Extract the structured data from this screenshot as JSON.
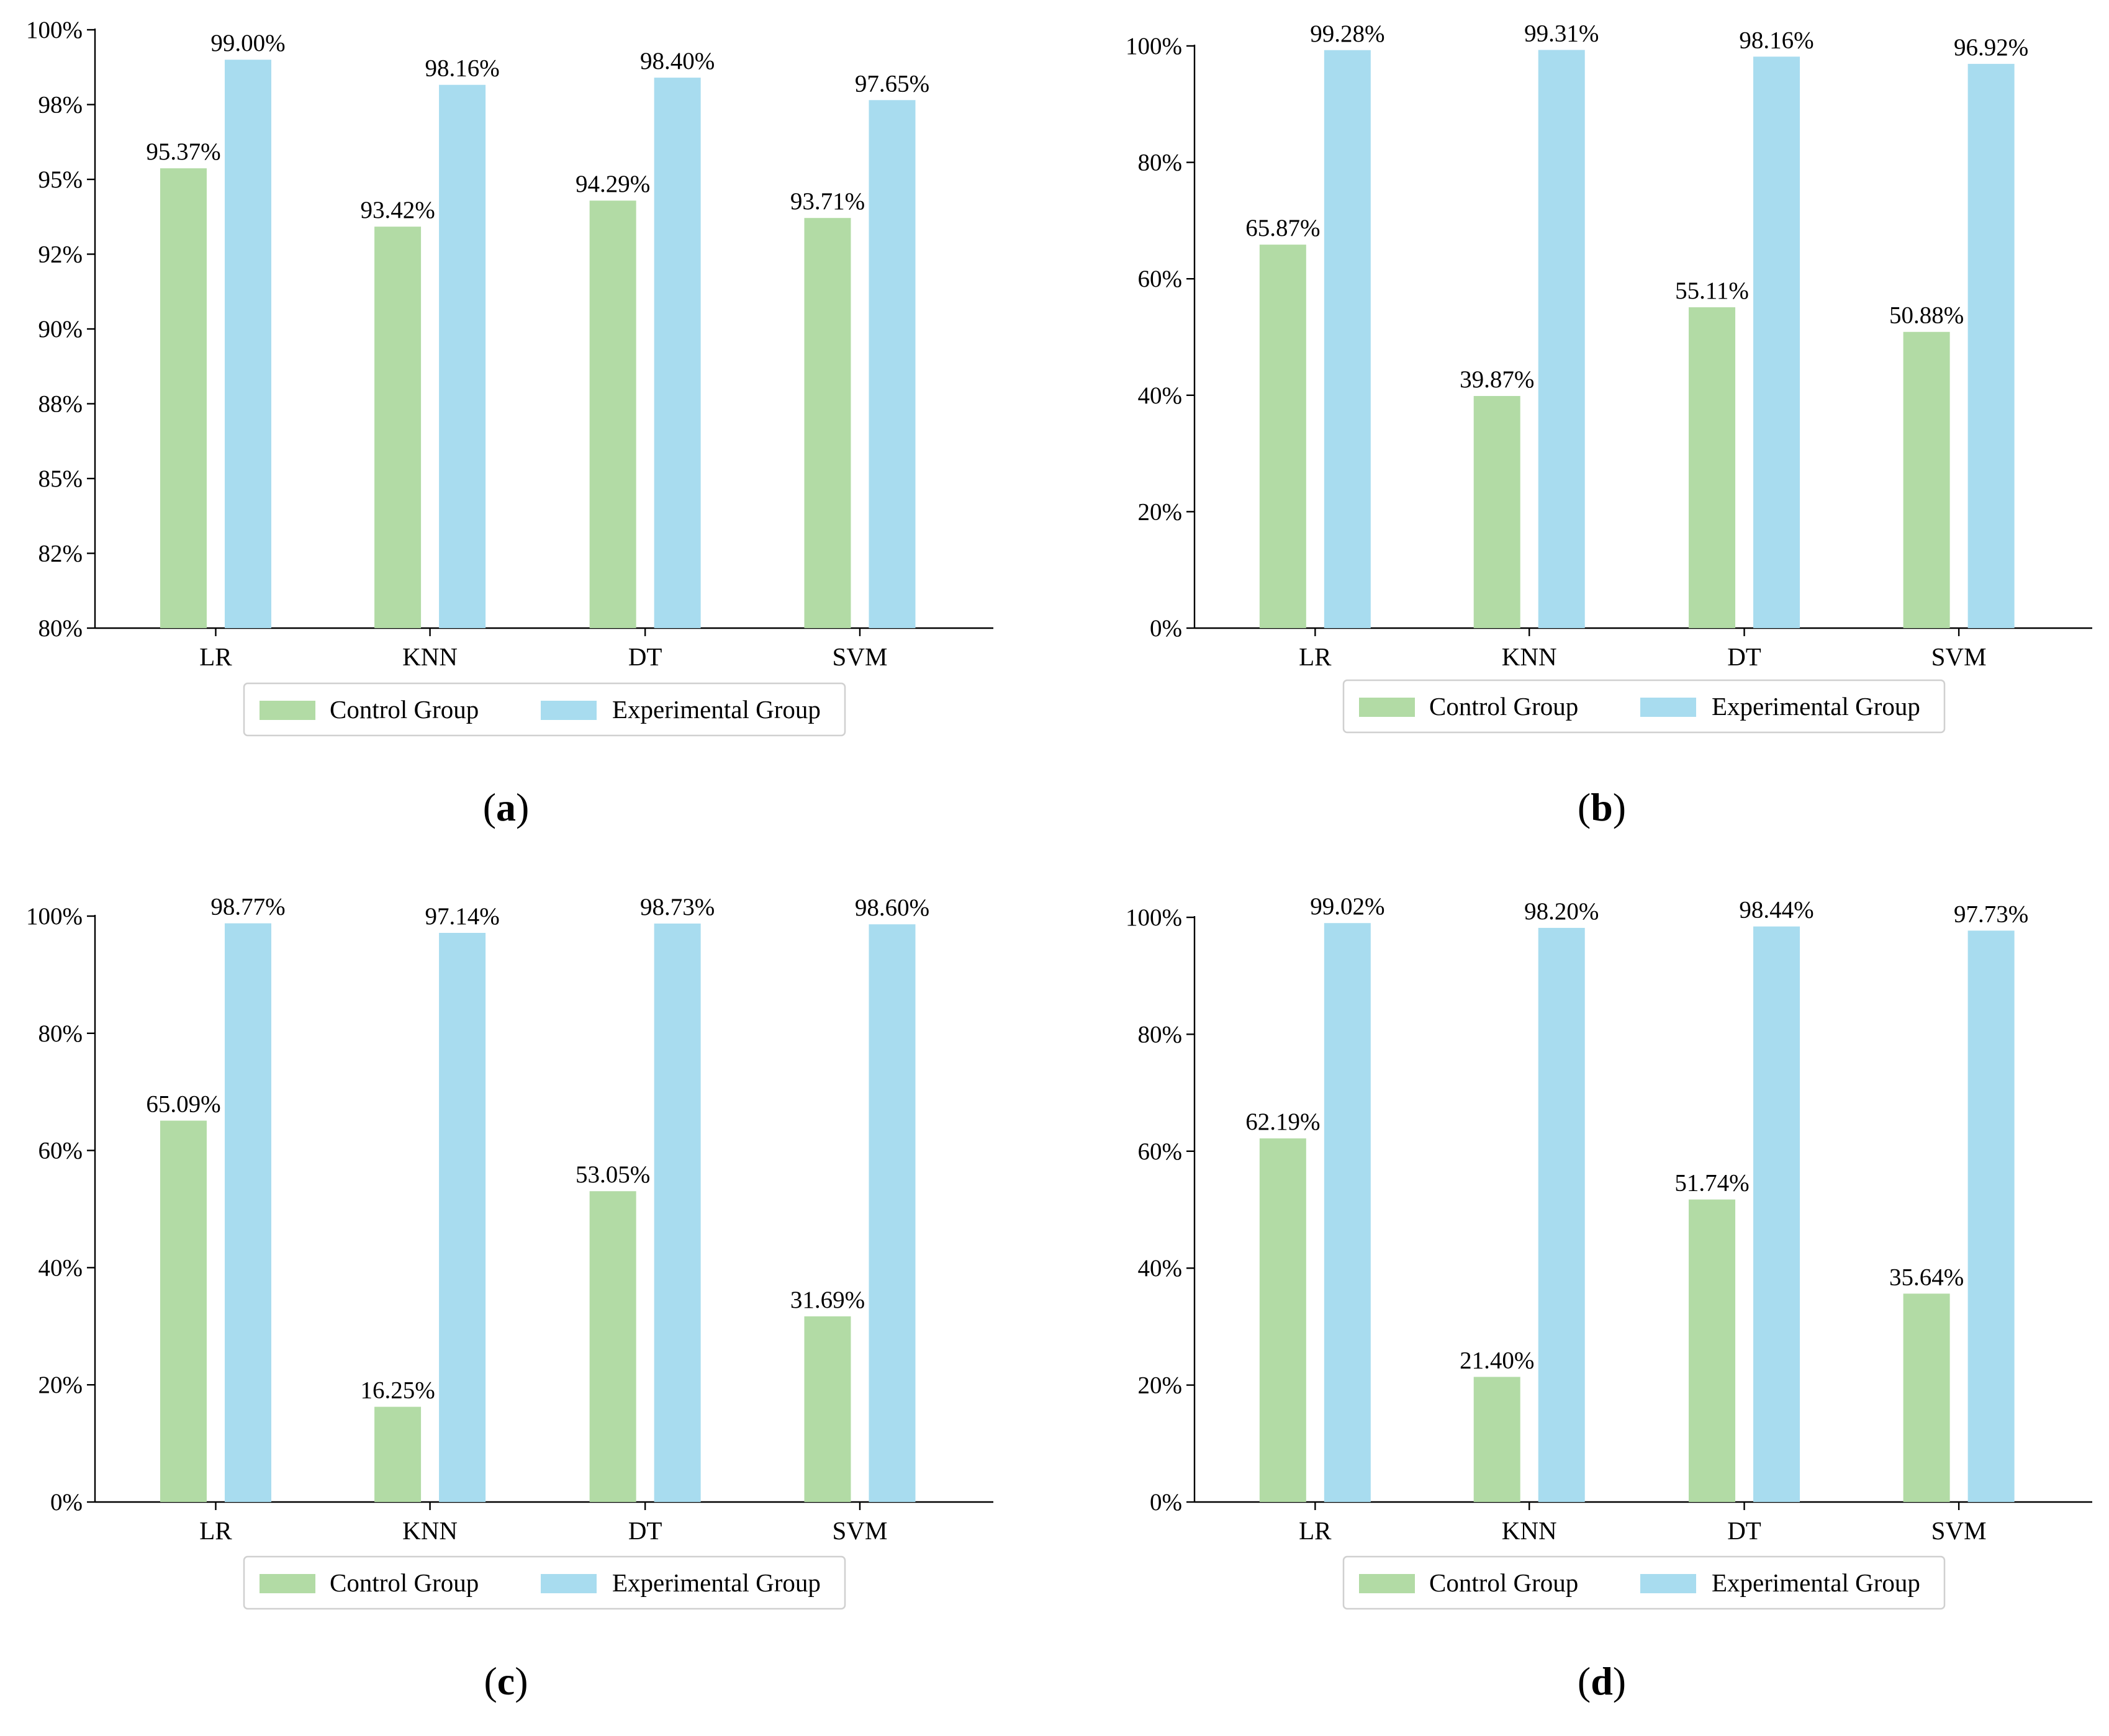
{
  "colors": {
    "control": "#b2dba5",
    "experimental": "#a8dcef"
  },
  "legend": {
    "control_label": "Control Group",
    "experimental_label": "Experimental Group"
  },
  "chart_data": [
    {
      "type": "bar",
      "panel": "a",
      "categories": [
        "LR",
        "KNN",
        "DT",
        "SVM"
      ],
      "series": [
        {
          "name": "Control Group",
          "values": [
            95.37,
            93.42,
            94.29,
            93.71
          ],
          "labels": [
            "95.37%",
            "93.42%",
            "94.29%",
            "93.71%"
          ]
        },
        {
          "name": "Experimental Group",
          "values": [
            99.0,
            98.16,
            98.4,
            97.65
          ],
          "labels": [
            "99.00%",
            "98.16%",
            "98.40%",
            "97.65%"
          ]
        }
      ],
      "ylim": [
        80,
        100
      ],
      "yticks": [
        80,
        82.5,
        85,
        87.5,
        90,
        92.5,
        95,
        97.5,
        100
      ],
      "ytick_labels": [
        "80%",
        "82%",
        "85%",
        "88%",
        "90%",
        "92%",
        "95%",
        "98%",
        "100%"
      ],
      "title": "",
      "xlabel": "",
      "ylabel": "",
      "legend_position": "bottom-center",
      "caption_letter": "a"
    },
    {
      "type": "bar",
      "panel": "b",
      "categories": [
        "LR",
        "KNN",
        "DT",
        "SVM"
      ],
      "series": [
        {
          "name": "Control Group",
          "values": [
            65.87,
            39.87,
            55.11,
            50.88
          ],
          "labels": [
            "65.87%",
            "39.87%",
            "55.11%",
            "50.88%"
          ]
        },
        {
          "name": "Experimental Group",
          "values": [
            99.28,
            99.31,
            98.16,
            96.92
          ],
          "labels": [
            "99.28%",
            "99.31%",
            "98.16%",
            "96.92%"
          ]
        }
      ],
      "ylim": [
        0,
        100
      ],
      "yticks": [
        0,
        20,
        40,
        60,
        80,
        100
      ],
      "ytick_labels": [
        "0%",
        "20%",
        "40%",
        "60%",
        "80%",
        "100%"
      ],
      "title": "",
      "xlabel": "",
      "ylabel": "",
      "legend_position": "bottom-center",
      "caption_letter": "b"
    },
    {
      "type": "bar",
      "panel": "c",
      "categories": [
        "LR",
        "KNN",
        "DT",
        "SVM"
      ],
      "series": [
        {
          "name": "Control Group",
          "values": [
            65.09,
            16.25,
            53.05,
            31.69
          ],
          "labels": [
            "65.09%",
            "16.25%",
            "53.05%",
            "31.69%"
          ]
        },
        {
          "name": "Experimental Group",
          "values": [
            98.77,
            97.14,
            98.73,
            98.6
          ],
          "labels": [
            "98.77%",
            "97.14%",
            "98.73%",
            "98.60%"
          ]
        }
      ],
      "ylim": [
        0,
        100
      ],
      "yticks": [
        0,
        20,
        40,
        60,
        80,
        100
      ],
      "ytick_labels": [
        "0%",
        "20%",
        "40%",
        "60%",
        "80%",
        "100%"
      ],
      "title": "",
      "xlabel": "",
      "ylabel": "",
      "legend_position": "bottom-center",
      "caption_letter": "c"
    },
    {
      "type": "bar",
      "panel": "d",
      "categories": [
        "LR",
        "KNN",
        "DT",
        "SVM"
      ],
      "series": [
        {
          "name": "Control Group",
          "values": [
            62.19,
            21.4,
            51.74,
            35.64
          ],
          "labels": [
            "62.19%",
            "21.40%",
            "51.74%",
            "35.64%"
          ]
        },
        {
          "name": "Experimental Group",
          "values": [
            99.02,
            98.2,
            98.44,
            97.73
          ],
          "labels": [
            "99.02%",
            "98.20%",
            "98.44%",
            "97.73%"
          ]
        }
      ],
      "ylim": [
        0,
        100
      ],
      "yticks": [
        0,
        20,
        40,
        60,
        80,
        100
      ],
      "ytick_labels": [
        "0%",
        "20%",
        "40%",
        "60%",
        "80%",
        "100%"
      ],
      "title": "",
      "xlabel": "",
      "ylabel": "",
      "legend_position": "bottom-center",
      "caption_letter": "d"
    }
  ]
}
